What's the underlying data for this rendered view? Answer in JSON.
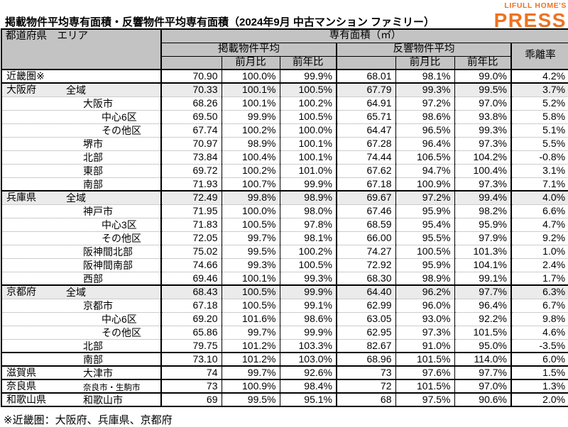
{
  "header": {
    "title": "掲載物件平均専有面積・反響物件平均専有面積（2024年9月 中古マンション ファミリー）",
    "logo_line1": "LIFULL HOME'S",
    "logo_line2": "PRESS",
    "logo_color": "#ee7220"
  },
  "table_header": {
    "pref_area": "都道府県　エリア",
    "total_area": "専有面積（㎡）",
    "listed_avg": "掲載物件平均",
    "inquiry_avg": "反響物件平均",
    "mom": "前月比",
    "yoy": "前年比",
    "divergence": "乖離率"
  },
  "footnote": "※近畿圏：大阪府、兵庫県、京都府",
  "chart_data": {
    "type": "table",
    "title": "掲載物件平均専有面積・反響物件平均専有面積（2024年9月 中古マンション ファミリー）",
    "unit": "㎡",
    "columns": [
      "都道府県 エリア",
      "掲載物件平均",
      "掲載物件平均 前月比",
      "掲載物件平均 前年比",
      "反響物件平均",
      "反響物件平均 前月比",
      "反響物件平均 前年比",
      "乖離率"
    ],
    "rows": [
      {
        "pref": "近畿圏※",
        "area": "",
        "indent": 0,
        "shade": false,
        "thick_top": true,
        "small": false,
        "values": [
          "70.90",
          "100.0%",
          "99.9%",
          "68.01",
          "98.1%",
          "99.0%",
          "4.2%"
        ]
      },
      {
        "pref": "大阪府",
        "area": "全域",
        "indent": 1,
        "shade": true,
        "thick_top": true,
        "small": false,
        "values": [
          "70.33",
          "100.1%",
          "100.5%",
          "67.79",
          "99.3%",
          "99.5%",
          "3.7%"
        ]
      },
      {
        "pref": "",
        "area": "大阪市",
        "indent": 2,
        "shade": false,
        "thick_top": false,
        "small": false,
        "values": [
          "68.26",
          "100.1%",
          "100.2%",
          "64.91",
          "97.2%",
          "97.0%",
          "5.2%"
        ]
      },
      {
        "pref": "",
        "area": "中心6区",
        "indent": 3,
        "shade": false,
        "thick_top": false,
        "small": false,
        "values": [
          "69.50",
          "99.9%",
          "100.5%",
          "65.71",
          "98.6%",
          "93.8%",
          "5.8%"
        ]
      },
      {
        "pref": "",
        "area": "その他区",
        "indent": 3,
        "shade": false,
        "thick_top": false,
        "small": false,
        "values": [
          "67.74",
          "100.2%",
          "100.0%",
          "64.47",
          "96.5%",
          "99.3%",
          "5.1%"
        ]
      },
      {
        "pref": "",
        "area": "堺市",
        "indent": 2,
        "shade": false,
        "thick_top": false,
        "small": false,
        "values": [
          "70.97",
          "98.9%",
          "100.1%",
          "67.28",
          "96.4%",
          "97.3%",
          "5.5%"
        ]
      },
      {
        "pref": "",
        "area": "北部",
        "indent": 2,
        "shade": false,
        "thick_top": false,
        "small": false,
        "values": [
          "73.84",
          "100.4%",
          "100.1%",
          "74.44",
          "106.5%",
          "104.2%",
          "-0.8%"
        ]
      },
      {
        "pref": "",
        "area": "東部",
        "indent": 2,
        "shade": false,
        "thick_top": false,
        "small": false,
        "values": [
          "69.72",
          "100.2%",
          "101.0%",
          "67.62",
          "94.7%",
          "100.4%",
          "3.1%"
        ]
      },
      {
        "pref": "",
        "area": "南部",
        "indent": 2,
        "shade": false,
        "thick_top": false,
        "small": false,
        "values": [
          "71.93",
          "100.7%",
          "99.9%",
          "67.18",
          "100.9%",
          "97.3%",
          "7.1%"
        ]
      },
      {
        "pref": "兵庫県",
        "area": "全域",
        "indent": 1,
        "shade": true,
        "thick_top": true,
        "small": false,
        "values": [
          "72.49",
          "99.8%",
          "98.9%",
          "69.67",
          "97.2%",
          "99.4%",
          "4.0%"
        ]
      },
      {
        "pref": "",
        "area": "神戸市",
        "indent": 2,
        "shade": false,
        "thick_top": false,
        "small": false,
        "values": [
          "71.95",
          "100.0%",
          "98.0%",
          "67.46",
          "95.9%",
          "98.2%",
          "6.6%"
        ]
      },
      {
        "pref": "",
        "area": "中心3区",
        "indent": 3,
        "shade": false,
        "thick_top": false,
        "small": false,
        "values": [
          "71.83",
          "100.5%",
          "97.8%",
          "68.59",
          "95.4%",
          "95.9%",
          "4.7%"
        ]
      },
      {
        "pref": "",
        "area": "その他区",
        "indent": 3,
        "shade": false,
        "thick_top": false,
        "small": false,
        "values": [
          "72.05",
          "99.7%",
          "98.1%",
          "66.00",
          "95.5%",
          "97.9%",
          "9.2%"
        ]
      },
      {
        "pref": "",
        "area": "阪神間北部",
        "indent": 2,
        "shade": false,
        "thick_top": false,
        "small": false,
        "values": [
          "75.02",
          "99.5%",
          "100.2%",
          "74.27",
          "100.5%",
          "101.3%",
          "1.0%"
        ]
      },
      {
        "pref": "",
        "area": "阪神間南部",
        "indent": 2,
        "shade": false,
        "thick_top": false,
        "small": false,
        "values": [
          "74.66",
          "99.3%",
          "100.5%",
          "72.92",
          "95.9%",
          "104.1%",
          "2.4%"
        ]
      },
      {
        "pref": "",
        "area": "西部",
        "indent": 2,
        "shade": false,
        "thick_top": false,
        "small": false,
        "values": [
          "69.46",
          "100.1%",
          "99.3%",
          "68.30",
          "98.9%",
          "99.1%",
          "1.7%"
        ]
      },
      {
        "pref": "京都府",
        "area": "全域",
        "indent": 1,
        "shade": true,
        "thick_top": true,
        "small": false,
        "values": [
          "68.43",
          "100.5%",
          "99.9%",
          "64.40",
          "96.2%",
          "97.7%",
          "6.3%"
        ]
      },
      {
        "pref": "",
        "area": "京都市",
        "indent": 2,
        "shade": false,
        "thick_top": false,
        "small": false,
        "values": [
          "67.18",
          "100.5%",
          "99.1%",
          "62.99",
          "96.0%",
          "96.4%",
          "6.7%"
        ]
      },
      {
        "pref": "",
        "area": "中心6区",
        "indent": 3,
        "shade": false,
        "thick_top": false,
        "small": false,
        "values": [
          "69.20",
          "101.6%",
          "98.6%",
          "63.05",
          "93.0%",
          "92.2%",
          "9.8%"
        ]
      },
      {
        "pref": "",
        "area": "その他区",
        "indent": 3,
        "shade": false,
        "thick_top": false,
        "small": false,
        "values": [
          "65.86",
          "99.7%",
          "99.9%",
          "62.95",
          "97.3%",
          "101.5%",
          "4.6%"
        ]
      },
      {
        "pref": "",
        "area": "北部",
        "indent": 2,
        "shade": false,
        "thick_top": false,
        "small": false,
        "values": [
          "79.75",
          "101.2%",
          "103.3%",
          "82.67",
          "91.0%",
          "95.0%",
          "-3.5%"
        ]
      },
      {
        "pref": "",
        "area": "南部",
        "indent": 2,
        "shade": false,
        "thick_top": true,
        "small": false,
        "values": [
          "73.10",
          "101.2%",
          "103.0%",
          "68.96",
          "101.5%",
          "114.0%",
          "6.0%"
        ]
      },
      {
        "pref": "滋賀県",
        "area": "大津市",
        "indent": 2,
        "shade": false,
        "thick_top": true,
        "small": false,
        "values": [
          "74",
          "99.7%",
          "92.6%",
          "73",
          "97.6%",
          "97.7%",
          "1.5%"
        ]
      },
      {
        "pref": "奈良県",
        "area": "奈良市・生駒市",
        "indent": 2,
        "shade": false,
        "thick_top": true,
        "small": true,
        "values": [
          "73",
          "100.9%",
          "98.4%",
          "72",
          "101.5%",
          "97.0%",
          "1.3%"
        ]
      },
      {
        "pref": "和歌山県",
        "area": "和歌山市",
        "indent": 2,
        "shade": false,
        "thick_top": true,
        "small": false,
        "values": [
          "69",
          "99.5%",
          "95.1%",
          "68",
          "97.5%",
          "90.6%",
          "2.0%"
        ]
      }
    ]
  }
}
